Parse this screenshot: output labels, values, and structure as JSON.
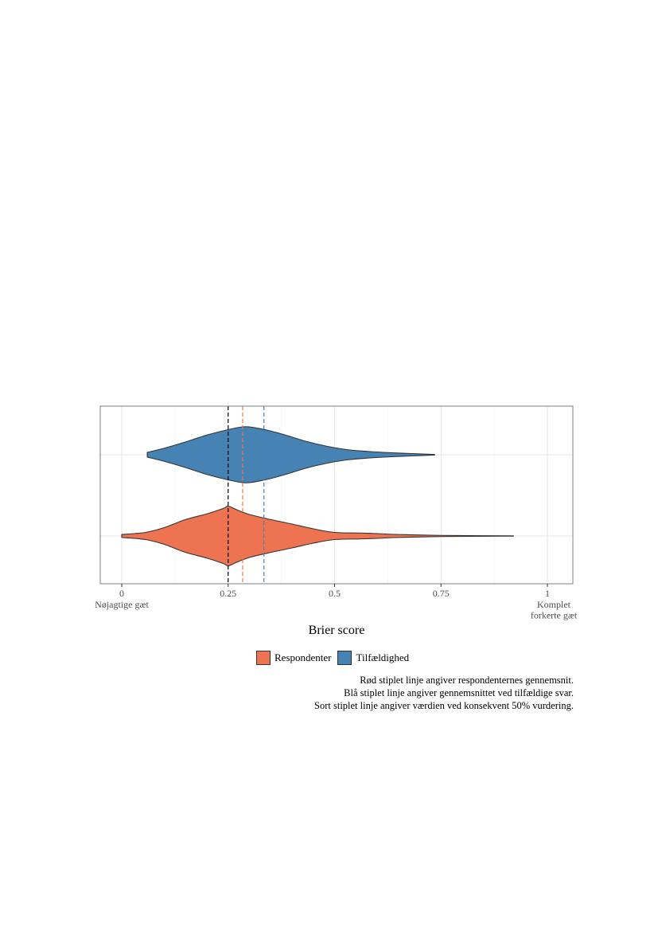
{
  "chart_data": {
    "type": "violin",
    "orientation": "horizontal",
    "xlabel": "Brier score",
    "xlim": [
      -0.05,
      1.06
    ],
    "x_ticks": [
      {
        "value": 0,
        "label": "0",
        "sublabel": [
          "Nøjagtige gæt"
        ]
      },
      {
        "value": 0.25,
        "label": "0.25"
      },
      {
        "value": 0.5,
        "label": "0.5"
      },
      {
        "value": 0.75,
        "label": "0.75"
      },
      {
        "value": 1,
        "label": "1",
        "sublabel": [
          "Komplet",
          "forkerte gæt"
        ]
      }
    ],
    "grid": true,
    "series": [
      {
        "name": "Tilfældighed",
        "color": "#4682B4",
        "range": [
          0.06,
          0.735
        ],
        "density": [
          [
            0.06,
            0.08
          ],
          [
            0.1,
            0.22
          ],
          [
            0.15,
            0.43
          ],
          [
            0.2,
            0.66
          ],
          [
            0.25,
            0.84
          ],
          [
            0.29,
            0.94
          ],
          [
            0.33,
            0.86
          ],
          [
            0.38,
            0.68
          ],
          [
            0.43,
            0.46
          ],
          [
            0.48,
            0.29
          ],
          [
            0.53,
            0.17
          ],
          [
            0.58,
            0.11
          ],
          [
            0.63,
            0.07
          ],
          [
            0.68,
            0.04
          ],
          [
            0.735,
            0.01
          ]
        ]
      },
      {
        "name": "Respondenter",
        "color": "#EE7451",
        "range": [
          0.0,
          0.92
        ],
        "density": [
          [
            0.0,
            0.05
          ],
          [
            0.03,
            0.08
          ],
          [
            0.06,
            0.13
          ],
          [
            0.1,
            0.28
          ],
          [
            0.15,
            0.55
          ],
          [
            0.2,
            0.74
          ],
          [
            0.24,
            0.93
          ],
          [
            0.25,
            1.0
          ],
          [
            0.27,
            0.88
          ],
          [
            0.3,
            0.72
          ],
          [
            0.35,
            0.55
          ],
          [
            0.4,
            0.4
          ],
          [
            0.45,
            0.24
          ],
          [
            0.5,
            0.12
          ],
          [
            0.56,
            0.1
          ],
          [
            0.6,
            0.08
          ],
          [
            0.65,
            0.05
          ],
          [
            0.75,
            0.02
          ],
          [
            0.85,
            0.01
          ],
          [
            0.92,
            0.005
          ]
        ]
      }
    ],
    "reference_lines": [
      {
        "value": 0.25,
        "color": "#000000"
      },
      {
        "value": 0.284,
        "color": "#EE7451"
      },
      {
        "value": 0.334,
        "color": "#4682B4"
      }
    ],
    "legend": {
      "position": "bottom",
      "order": [
        "Respondenter",
        "Tilfældighed"
      ]
    },
    "caption": [
      "Rød stiplet linje angiver respondenternes gennemsnit.",
      "Blå stiplet linje angiver gennemsnittet ved tilfældige svar.",
      "Sort stiplet linje angiver værdien ved konsekvent 50% vurdering."
    ]
  }
}
